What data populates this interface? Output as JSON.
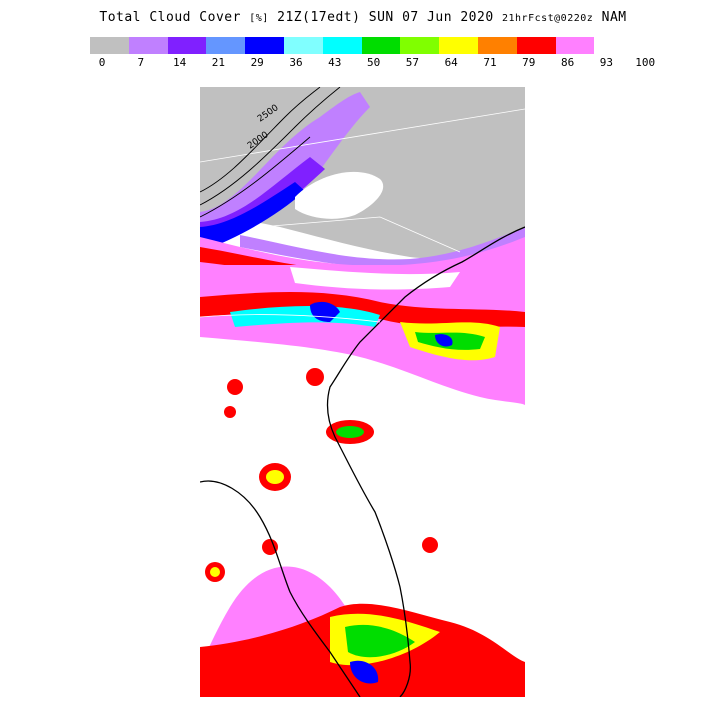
{
  "title": {
    "field": "Total Cloud Cover",
    "units": "[%]",
    "valid_time": "21Z(17edt)",
    "date": "SUN 07 Jun 2020",
    "forecast": "21hrFcst@0220z",
    "model": "NAM"
  },
  "colorbar": {
    "ticks": [
      "0",
      "7",
      "14",
      "21",
      "29",
      "36",
      "43",
      "50",
      "57",
      "64",
      "71",
      "79",
      "86",
      "93",
      "100"
    ],
    "colors": [
      "#c0c0c0",
      "#c080ff",
      "#8020ff",
      "#6496ff",
      "#0000ff",
      "#80ffff",
      "#00ffff",
      "#00dd00",
      "#80ff00",
      "#ffff00",
      "#ff8000",
      "#ff0000",
      "#ff80ff"
    ]
  },
  "map": {
    "background": "#ffffff",
    "contour_labels": [
      "2500",
      "2000"
    ]
  }
}
